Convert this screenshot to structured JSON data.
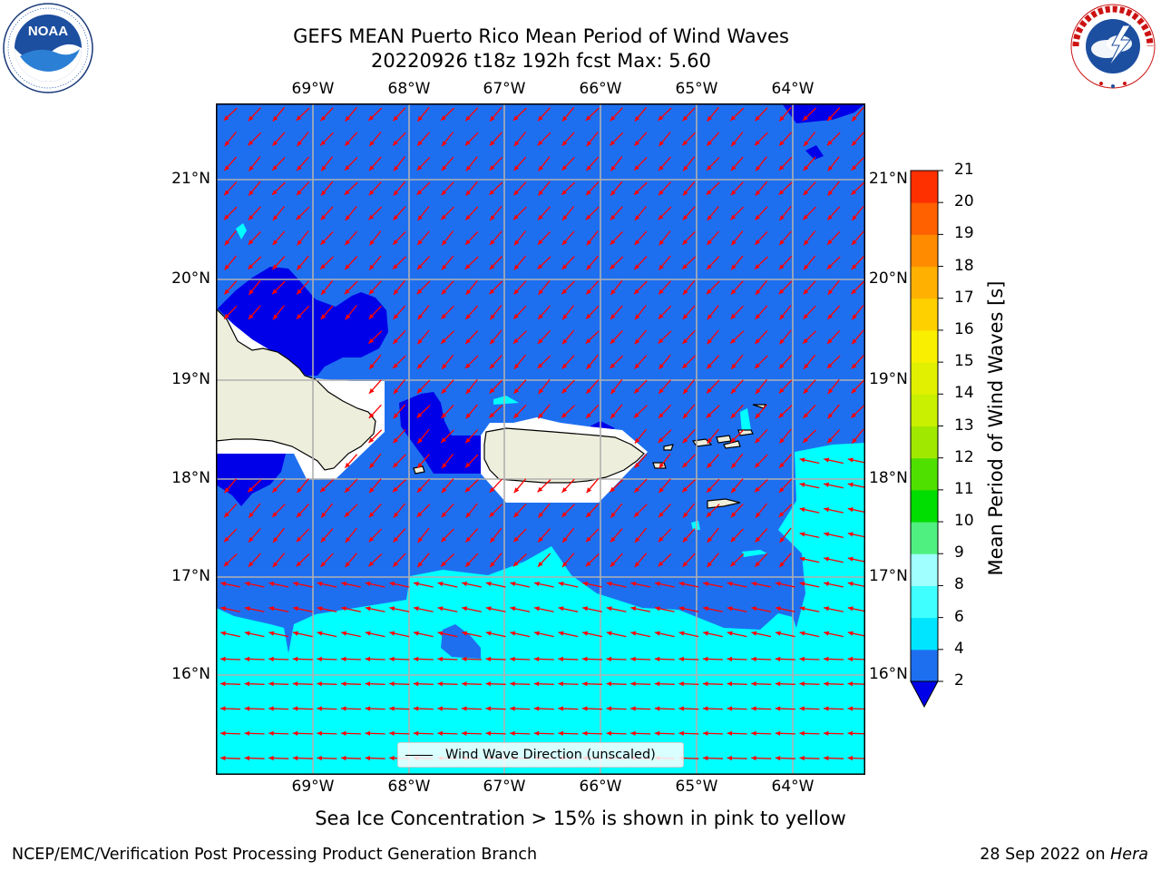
{
  "header": {
    "title_line1": "GEFS MEAN Puerto Rico Mean Period of Wind Waves",
    "title_line2": "20220926 t18z 192h fcst   Max: 5.60"
  },
  "logos": {
    "noaa": {
      "text": "NOAA",
      "ring_text": "NATIONAL OCEANIC AND ATMOSPHERIC ADMINISTRATION · U.S. DEPARTMENT OF COMMERCE"
    },
    "nws": {
      "ring_text": "NATIONAL WEATHER SERVICE"
    }
  },
  "map": {
    "lon_labels": [
      "69°W",
      "68°W",
      "67°W",
      "66°W",
      "65°W",
      "64°W"
    ],
    "lat_labels": [
      "21°N",
      "20°N",
      "19°N",
      "18°N",
      "17°N",
      "16°N"
    ],
    "legend_label": "Wind Wave Direction (unscaled)",
    "colors": {
      "lt2": "#0000e8",
      "p2_4": "#1e6ff0",
      "p4_6": "#00ffff",
      "land": "#eeeedc",
      "arrow": "#ff0000",
      "grid": "#b0b0b0"
    }
  },
  "colorbar": {
    "label": "Mean Period of Wind Waves [s]",
    "ticks": [
      "2",
      "4",
      "6",
      "8",
      "9",
      "10",
      "11",
      "12",
      "13",
      "14",
      "15",
      "16",
      "17",
      "18",
      "19",
      "20",
      "21"
    ],
    "colors": [
      "#1e6ff0",
      "#00e5ff",
      "#40ffff",
      "#a0ffff",
      "#50f080",
      "#00dd00",
      "#50e000",
      "#a0e800",
      "#c8f000",
      "#e0f000",
      "#f8f000",
      "#ffd000",
      "#ffb000",
      "#ff8c00",
      "#ff6000",
      "#ff3000",
      "#ff0000"
    ],
    "under_color": "#0000e8"
  },
  "footer": {
    "sea_ice_note": "Sea Ice Concentration > 15% is shown in pink to yellow",
    "branch": "NCEP/EMC/Verification Post Processing Product Generation Branch",
    "date": "28 Sep 2022 on",
    "machine": "Hera"
  }
}
